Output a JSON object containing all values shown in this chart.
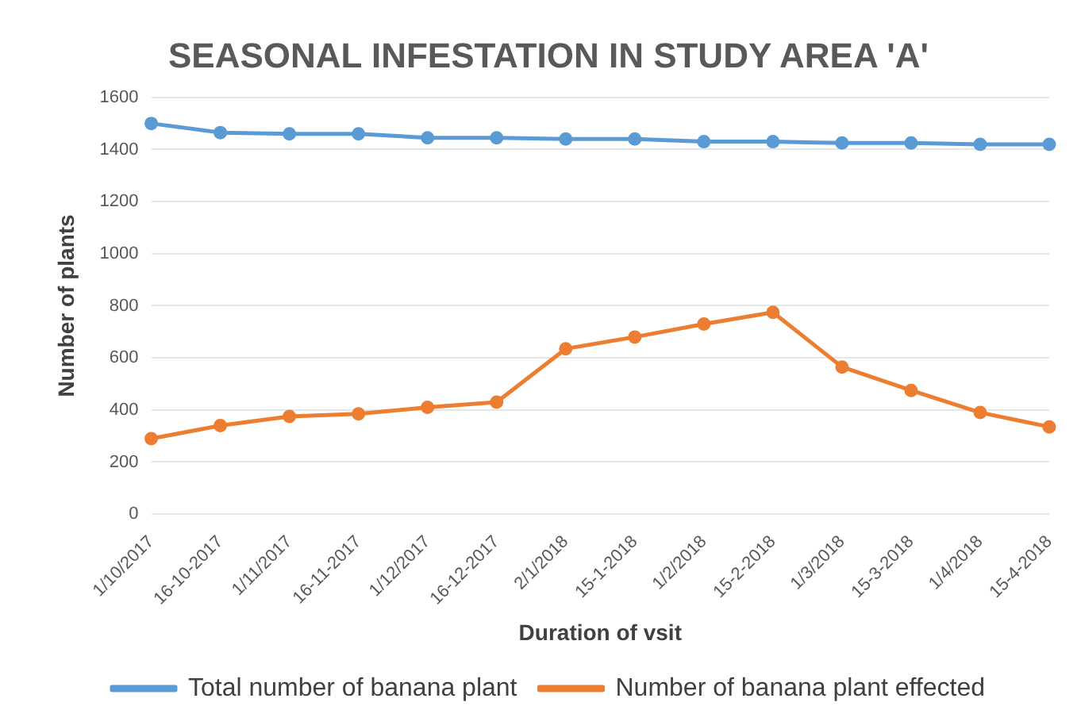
{
  "chart_data": {
    "type": "line",
    "title": "SEASONAL INFESTATION IN STUDY AREA 'A'",
    "xlabel": "Duration of vsit",
    "ylabel": "Number of plants",
    "categories": [
      "1/10/2017",
      "16-10-2017",
      "1/11/2017",
      "16-11-2017",
      "1/12/2017",
      "16-12-2017",
      "2/1/2018",
      "15-1-2018",
      "1/2/2018",
      "15-2-2018",
      "1/3/2018",
      "15-3-2018",
      "1/4/2018",
      "15-4-2018"
    ],
    "series": [
      {
        "name": "Total number of banana plant",
        "color": "#5b9bd5",
        "values": [
          1500,
          1465,
          1460,
          1460,
          1445,
          1445,
          1440,
          1440,
          1430,
          1430,
          1425,
          1425,
          1420,
          1420
        ]
      },
      {
        "name": "Number of banana plant effected",
        "color": "#ed7d31",
        "values": [
          290,
          340,
          375,
          385,
          410,
          430,
          635,
          680,
          730,
          775,
          565,
          475,
          390,
          335
        ]
      }
    ],
    "ylim": [
      0,
      1600
    ],
    "yticks": [
      0,
      200,
      400,
      600,
      800,
      1000,
      1200,
      1400,
      1600
    ],
    "grid": "y",
    "legend": "bottom",
    "marker": "circle"
  }
}
